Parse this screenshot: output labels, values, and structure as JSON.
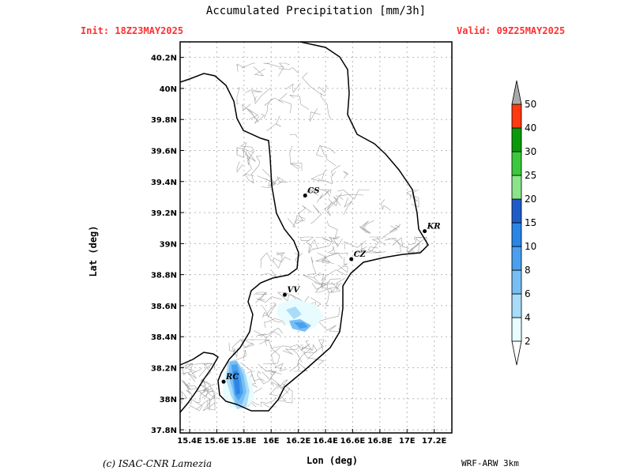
{
  "header": {
    "title": "Accumulated Precipitation [mm/3h]",
    "init": "Init:  18Z23MAY2025",
    "valid": "Valid:  09Z25MAY2025"
  },
  "axes": {
    "xlabel": "Lon (deg)",
    "ylabel": "Lat (deg)",
    "x_ticks": [
      "15.4E",
      "15.6E",
      "15.8E",
      "16E",
      "16.2E",
      "16.4E",
      "16.6E",
      "16.8E",
      "17E",
      "17.2E"
    ],
    "y_ticks": [
      "37.8N",
      "38N",
      "38.2N",
      "38.4N",
      "38.6N",
      "38.8N",
      "39N",
      "39.2N",
      "39.4N",
      "39.6N",
      "39.8N",
      "40N",
      "40.2N"
    ],
    "x_range": [
      15.33,
      17.33
    ],
    "y_range": [
      37.78,
      40.3
    ],
    "grid": true
  },
  "cities": [
    {
      "label": "CS",
      "lon": 16.25,
      "lat": 39.31
    },
    {
      "label": "KR",
      "lon": 17.13,
      "lat": 39.08
    },
    {
      "label": "CZ",
      "lon": 16.59,
      "lat": 38.9
    },
    {
      "label": "VV",
      "lon": 16.1,
      "lat": 38.67
    },
    {
      "label": "RC",
      "lon": 15.65,
      "lat": 38.11
    }
  ],
  "colorbar": {
    "levels": [
      "2",
      "4",
      "6",
      "8",
      "10",
      "15",
      "20",
      "25",
      "30",
      "40",
      "50"
    ],
    "colors": [
      "#e8fcff",
      "#a8dcf8",
      "#78bef4",
      "#4aa0ee",
      "#2a86e6",
      "#1e5cc8",
      "#8ae48a",
      "#3cc83c",
      "#0a9a0a",
      "#ff3a10",
      "#aaaaaa"
    ]
  },
  "footer": {
    "credit": "(c) ISAC-CNR Lamezia",
    "model": "WRF-ARW 3km"
  }
}
